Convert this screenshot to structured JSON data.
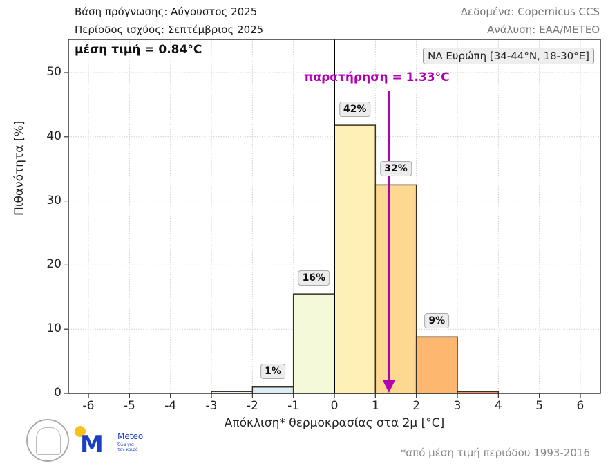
{
  "header": {
    "forecast_base": "Βάση πρόγνωσης: Αύγουστος 2025",
    "valid_period": "Περίοδος ισχύος: Σεπτέμβριος 2025",
    "data_source": "Δεδομένα: Copernicus CCS",
    "analysis": "Ανάλυση: ΕΑΑ/METEO"
  },
  "annotations": {
    "mean": "μέση τιμή = 0.84°C",
    "region": "ΝΑ Ευρώπη [34-44°N, 18-30°E]",
    "observation": "παρατήρηση = 1.33°C",
    "observation_value": 1.33,
    "observation_color": "#b000b0"
  },
  "footer": {
    "footnote": "*από μέση τιμή περιόδου 1993-2016",
    "logo_meteo": "Meteo",
    "logo_meteo_slogan": "Όλα για τον καιρό"
  },
  "chart_data": {
    "type": "bar",
    "title": "",
    "xlabel": "Απόκλιση* θερμοκρασίας στα 2μ [°C]",
    "ylabel": "Πιθανότητα [%]",
    "xlim": [
      -6.5,
      6.5
    ],
    "ylim": [
      0,
      55
    ],
    "xticks": [
      -6,
      -5,
      -4,
      -3,
      -2,
      -1,
      0,
      1,
      2,
      3,
      4,
      5,
      6
    ],
    "yticks": [
      0,
      10,
      20,
      30,
      40,
      50
    ],
    "grid": true,
    "bins": [
      {
        "from": -3,
        "to": -2,
        "value": 0.3,
        "label": "",
        "color": "#e8f4fb"
      },
      {
        "from": -2,
        "to": -1,
        "value": 1.0,
        "label": "1%",
        "color": "#dbeef8"
      },
      {
        "from": -1,
        "to": 0,
        "value": 15.5,
        "label": "16%",
        "color": "#f3f9d9"
      },
      {
        "from": 0,
        "to": 1,
        "value": 41.8,
        "label": "42%",
        "color": "#fff1b5"
      },
      {
        "from": 1,
        "to": 2,
        "value": 32.5,
        "label": "32%",
        "color": "#fdd890"
      },
      {
        "from": 2,
        "to": 3,
        "value": 8.8,
        "label": "9%",
        "color": "#fdb76e"
      },
      {
        "from": 3,
        "to": 4,
        "value": 0.3,
        "label": "",
        "color": "#f08a60"
      }
    ],
    "vertical_line_at": 0,
    "mean": 0.84,
    "observation": 1.33
  }
}
